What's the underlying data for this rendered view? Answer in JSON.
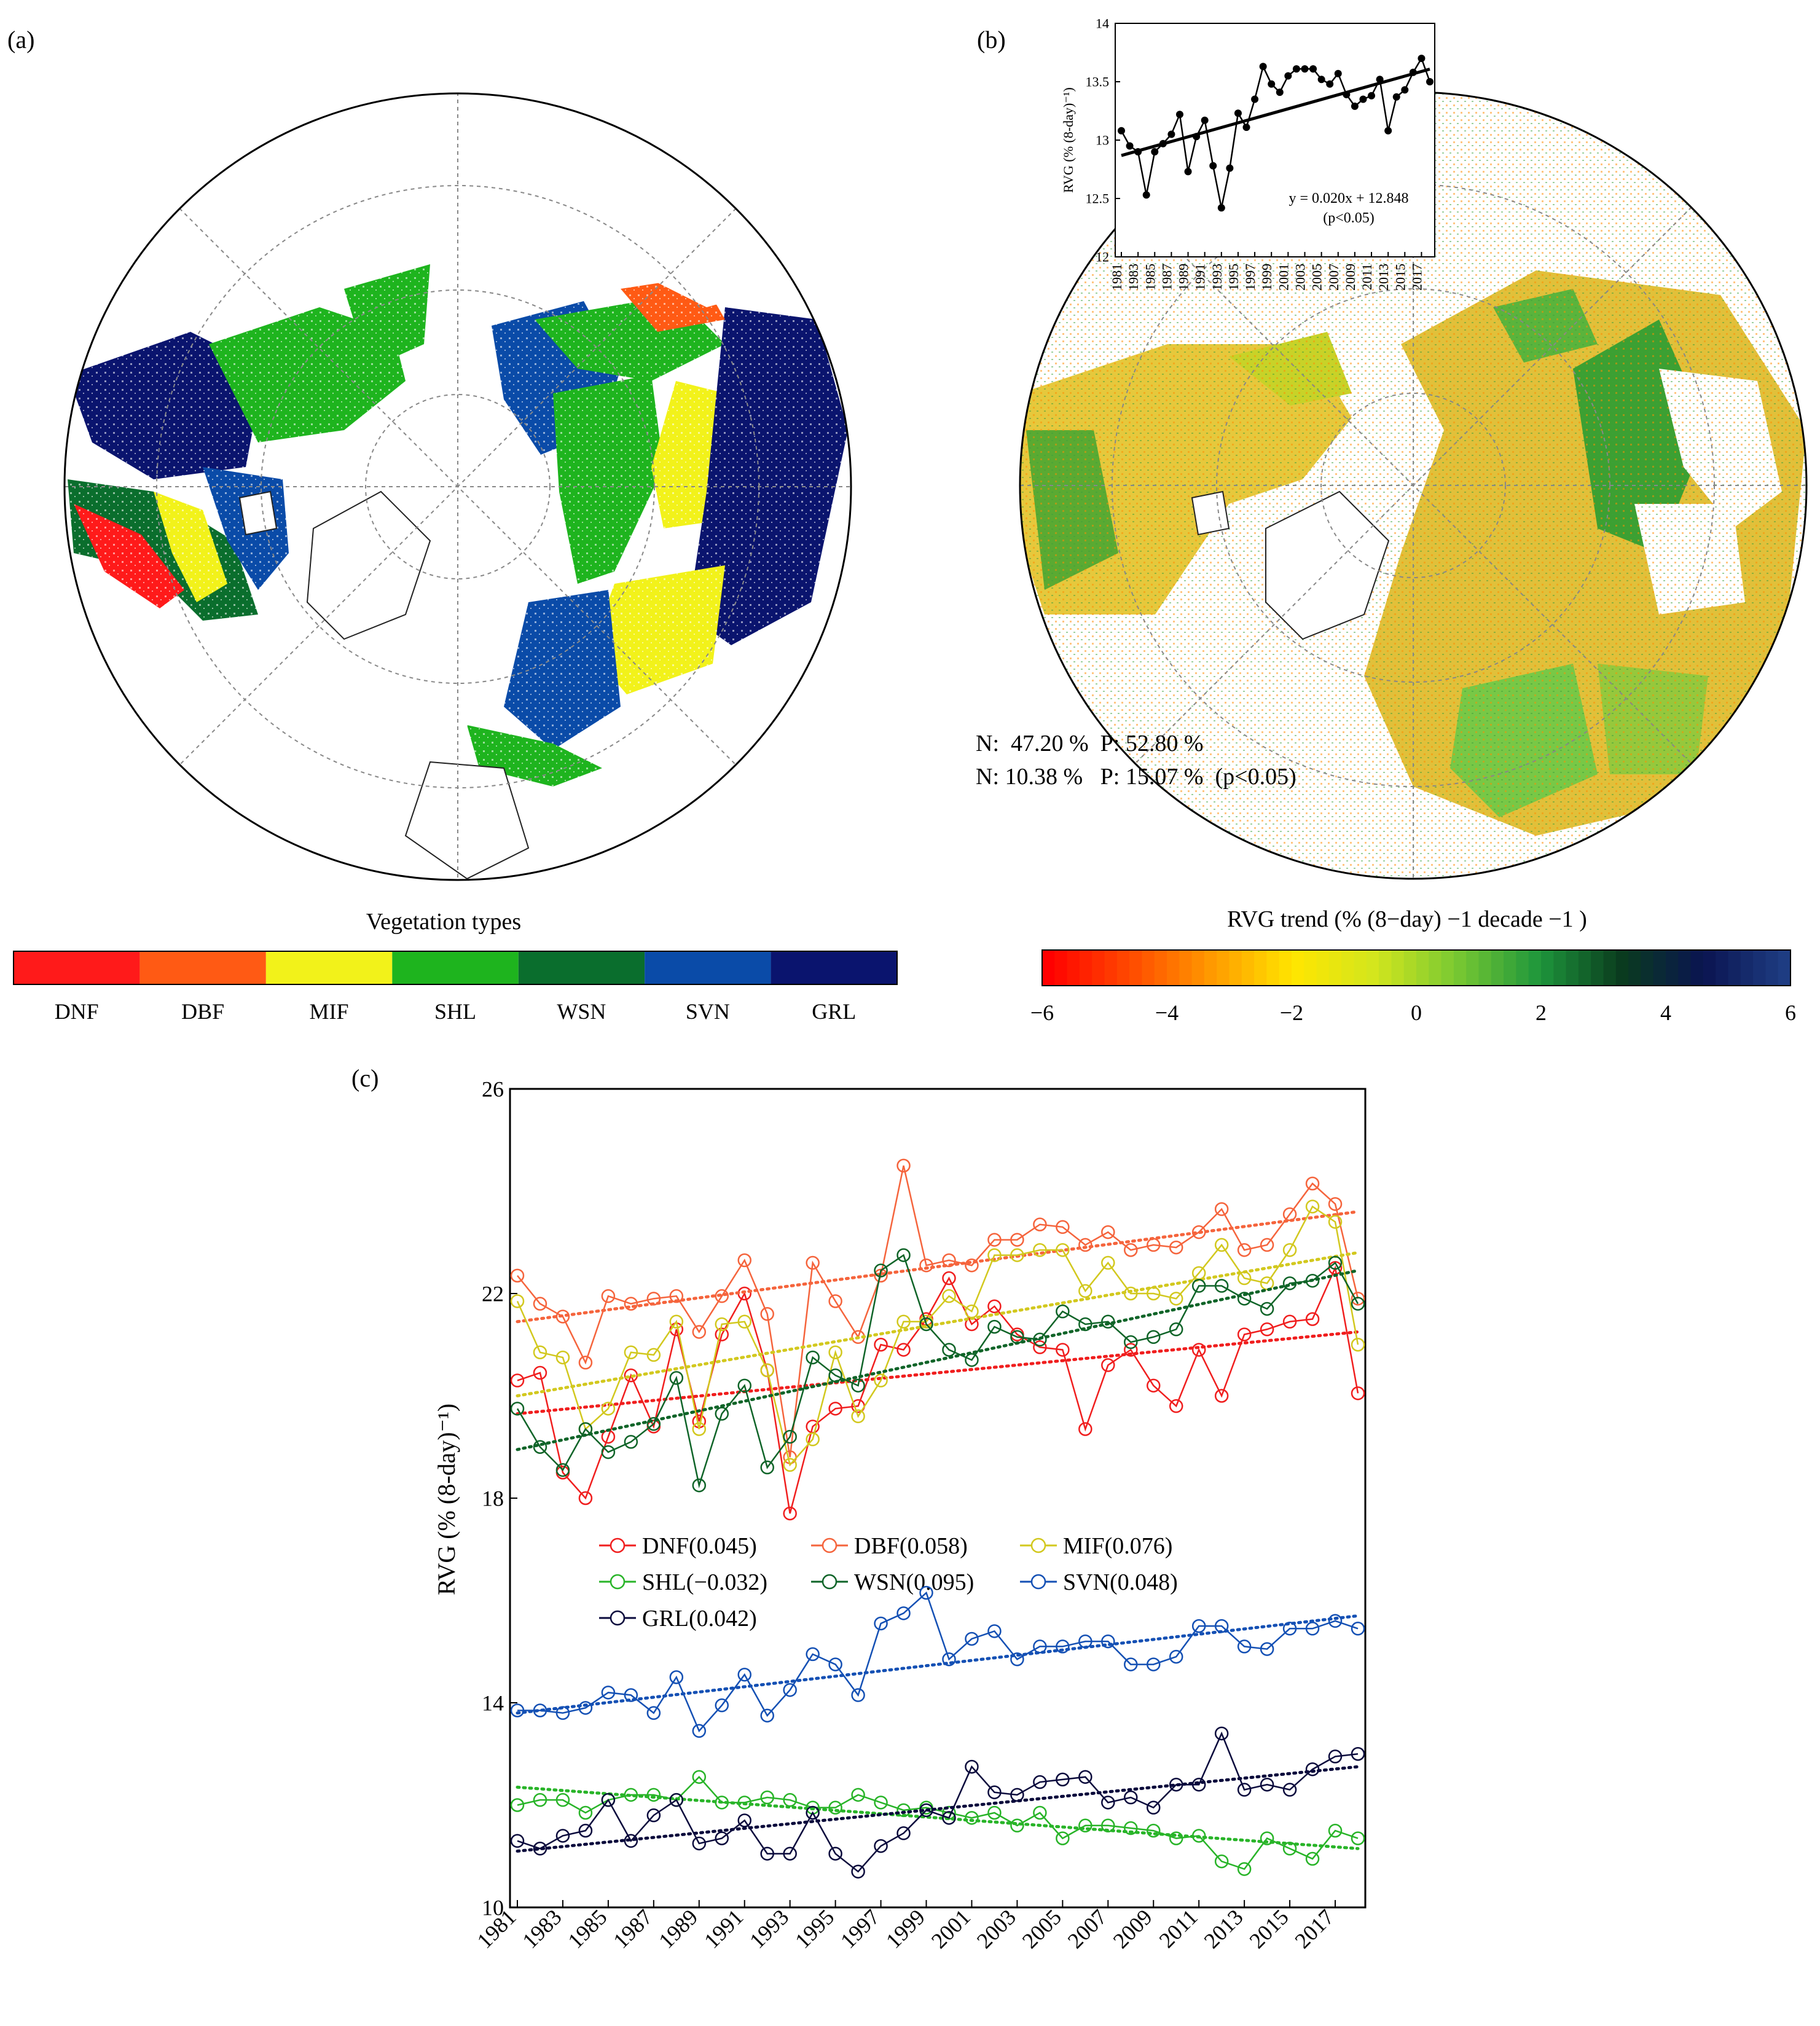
{
  "panel_a": {
    "label": "(a)",
    "colorbar_title": "Vegetation types",
    "classes": [
      {
        "name": "DNF",
        "color": "#ff1a1a"
      },
      {
        "name": "DBF",
        "color": "#ff5a14"
      },
      {
        "name": "MIF",
        "color": "#f2f21a"
      },
      {
        "name": "SHL",
        "color": "#1eb41e"
      },
      {
        "name": "WSN",
        "color": "#0a6e2d"
      },
      {
        "name": "SVN",
        "color": "#0a4ba8"
      },
      {
        "name": "GRL",
        "color": "#0a146e"
      }
    ]
  },
  "panel_b": {
    "label": "(b)",
    "stats_line1": "N:  47.20 %  P: 52.80 %",
    "stats_line2": "N: 10.38 %   P: 15.07 %  (p<0.05)",
    "colorbar_title": "RVG trend (% (8−day) −1 decade −1 )",
    "colorbar_ticks": [
      "−6",
      "−4",
      "−2",
      "0",
      "2",
      "4",
      "6"
    ],
    "colorbar_colors": [
      "#ff0000",
      "#ff4a00",
      "#ff9a00",
      "#ffe600",
      "#d2e61e",
      "#78c832",
      "#1e963c",
      "#0a3c1e",
      "#0a1450",
      "#1e3c82"
    ]
  },
  "colors": {
    "DNF": "#f01e1e",
    "DBF": "#f5643c",
    "MIF": "#d2c81e",
    "SHL": "#28b428",
    "WSN": "#0f6428",
    "SVN": "#1450b4",
    "GRL": "#0a0a3c",
    "inset": "#000000"
  },
  "chart_data": [
    {
      "id": "inset_b",
      "type": "line",
      "ylabel": "RVG (% (8-day)⁻¹)",
      "ylim": [
        12,
        14
      ],
      "yticks": [
        "12",
        "12.5",
        "13",
        "13.5",
        "14"
      ],
      "xticks": [
        "1981",
        "1983",
        "1985",
        "1987",
        "1989",
        "1991",
        "1993",
        "1995",
        "1997",
        "1999",
        "2001",
        "2003",
        "2005",
        "2007",
        "2009",
        "2011",
        "2013",
        "2015",
        "2017"
      ],
      "x": [
        1981,
        1982,
        1983,
        1984,
        1985,
        1986,
        1987,
        1988,
        1989,
        1990,
        1991,
        1992,
        1993,
        1994,
        1995,
        1996,
        1997,
        1998,
        1999,
        2000,
        2001,
        2002,
        2003,
        2004,
        2005,
        2006,
        2007,
        2008,
        2009,
        2010,
        2011,
        2012,
        2013,
        2014,
        2015,
        2016,
        2017,
        2018
      ],
      "values": [
        13.08,
        12.95,
        12.9,
        12.53,
        12.9,
        12.97,
        13.05,
        13.22,
        12.73,
        13.03,
        13.17,
        12.78,
        12.42,
        12.76,
        13.23,
        13.11,
        13.35,
        13.63,
        13.48,
        13.41,
        13.55,
        13.61,
        13.61,
        13.61,
        13.52,
        13.48,
        13.57,
        13.39,
        13.29,
        13.35,
        13.38,
        13.52,
        13.08,
        13.37,
        13.43,
        13.58,
        13.7,
        13.5
      ],
      "trend_equation": "y = 0.020x + 12.848",
      "trend_note": "(p<0.05)",
      "trend": {
        "slope": 0.02,
        "intercept": 12.848
      }
    },
    {
      "id": "panel_c",
      "label": "(c)",
      "type": "line",
      "ylabel": "RVG (% (8-day)⁻¹)",
      "ylim": [
        10,
        26
      ],
      "yticks": [
        "10",
        "14",
        "18",
        "22",
        "26"
      ],
      "xticks": [
        "1981",
        "1983",
        "1985",
        "1987",
        "1989",
        "1991",
        "1993",
        "1995",
        "1997",
        "1999",
        "2001",
        "2003",
        "2005",
        "2007",
        "2009",
        "2011",
        "2013",
        "2015",
        "2017"
      ],
      "x": [
        1981,
        1982,
        1983,
        1984,
        1985,
        1986,
        1987,
        1988,
        1989,
        1990,
        1991,
        1992,
        1993,
        1994,
        1995,
        1996,
        1997,
        1998,
        1999,
        2000,
        2001,
        2002,
        2003,
        2004,
        2005,
        2006,
        2007,
        2008,
        2009,
        2010,
        2011,
        2012,
        2013,
        2014,
        2015,
        2016,
        2017,
        2018
      ],
      "series": [
        {
          "name": "DNF",
          "legend": "DNF(0.045)",
          "trend": [
            19.65,
            21.25
          ],
          "values": [
            20.3,
            20.45,
            18.5,
            18.0,
            19.2,
            20.4,
            19.4,
            21.3,
            19.5,
            21.2,
            22.0,
            20.5,
            17.7,
            19.4,
            19.75,
            19.8,
            21.0,
            20.9,
            21.5,
            22.3,
            21.4,
            21.75,
            21.2,
            20.95,
            20.9,
            19.35,
            20.6,
            20.9,
            20.2,
            19.8,
            20.9,
            20.0,
            21.2,
            21.3,
            21.45,
            21.5,
            22.5,
            20.05
          ]
        },
        {
          "name": "DBF",
          "legend": "DBF(0.058)",
          "trend": [
            21.45,
            23.6
          ],
          "values": [
            22.35,
            21.8,
            21.55,
            20.65,
            21.95,
            21.8,
            21.9,
            21.95,
            21.25,
            21.95,
            22.65,
            21.6,
            18.8,
            22.6,
            21.85,
            21.15,
            22.35,
            24.5,
            22.55,
            22.65,
            22.55,
            23.05,
            23.05,
            23.35,
            23.3,
            22.95,
            23.2,
            22.85,
            22.95,
            22.9,
            23.2,
            23.65,
            22.85,
            22.95,
            23.55,
            24.15,
            23.75,
            21.9
          ]
        },
        {
          "name": "MIF",
          "legend": "MIF(0.076)",
          "trend": [
            20.0,
            22.8
          ],
          "values": [
            21.85,
            20.85,
            20.75,
            19.35,
            19.75,
            20.85,
            20.8,
            21.45,
            19.35,
            21.4,
            21.45,
            20.5,
            18.65,
            19.15,
            20.85,
            19.6,
            20.3,
            21.45,
            21.45,
            21.95,
            21.65,
            22.75,
            22.75,
            22.85,
            22.85,
            22.05,
            22.6,
            22.0,
            22.0,
            21.9,
            22.4,
            22.95,
            22.3,
            22.2,
            22.85,
            23.7,
            23.4,
            21.0
          ]
        },
        {
          "name": "SHL",
          "legend": "SHL(−0.032)",
          "trend": [
            12.35,
            11.15
          ],
          "values": [
            12.0,
            12.1,
            12.1,
            11.85,
            12.1,
            12.2,
            12.2,
            12.1,
            12.55,
            12.05,
            12.05,
            12.15,
            12.1,
            11.95,
            11.95,
            12.2,
            12.05,
            11.9,
            11.95,
            11.85,
            11.75,
            11.85,
            11.6,
            11.85,
            11.35,
            11.6,
            11.6,
            11.55,
            11.5,
            11.35,
            11.4,
            10.9,
            10.75,
            11.35,
            11.15,
            10.95,
            11.5,
            11.35
          ]
        },
        {
          "name": "WSN",
          "legend": "WSN(0.095)",
          "trend": [
            18.95,
            22.45
          ],
          "values": [
            19.75,
            19.0,
            18.55,
            19.35,
            18.9,
            19.1,
            19.45,
            20.35,
            18.25,
            19.65,
            20.2,
            18.6,
            19.2,
            20.75,
            20.4,
            20.2,
            22.45,
            22.75,
            21.4,
            20.9,
            20.7,
            21.35,
            21.15,
            21.1,
            21.65,
            21.4,
            21.45,
            21.05,
            21.15,
            21.3,
            22.15,
            22.15,
            21.9,
            21.7,
            22.2,
            22.25,
            22.6,
            21.8
          ]
        },
        {
          "name": "SVN",
          "legend": "SVN(0.048)",
          "trend": [
            13.8,
            15.7
          ],
          "values": [
            13.85,
            13.85,
            13.8,
            13.9,
            14.2,
            14.15,
            13.8,
            14.5,
            13.45,
            13.95,
            14.55,
            13.75,
            14.25,
            14.95,
            14.75,
            14.15,
            15.55,
            15.75,
            16.15,
            14.85,
            15.25,
            15.4,
            14.85,
            15.1,
            15.1,
            15.2,
            15.2,
            14.75,
            14.75,
            14.9,
            15.5,
            15.5,
            15.1,
            15.05,
            15.45,
            15.45,
            15.6,
            15.45
          ]
        },
        {
          "name": "GRL",
          "legend": "GRL(0.042)",
          "trend": [
            11.1,
            12.75
          ],
          "values": [
            11.3,
            11.15,
            11.4,
            11.5,
            12.1,
            11.3,
            11.8,
            12.1,
            11.25,
            11.35,
            11.7,
            11.05,
            11.05,
            11.85,
            11.05,
            10.7,
            11.2,
            11.45,
            11.9,
            11.75,
            12.75,
            12.25,
            12.2,
            12.45,
            12.5,
            12.55,
            12.05,
            12.15,
            11.95,
            12.4,
            12.4,
            13.4,
            12.3,
            12.4,
            12.3,
            12.7,
            12.95,
            13.0
          ]
        }
      ]
    }
  ]
}
